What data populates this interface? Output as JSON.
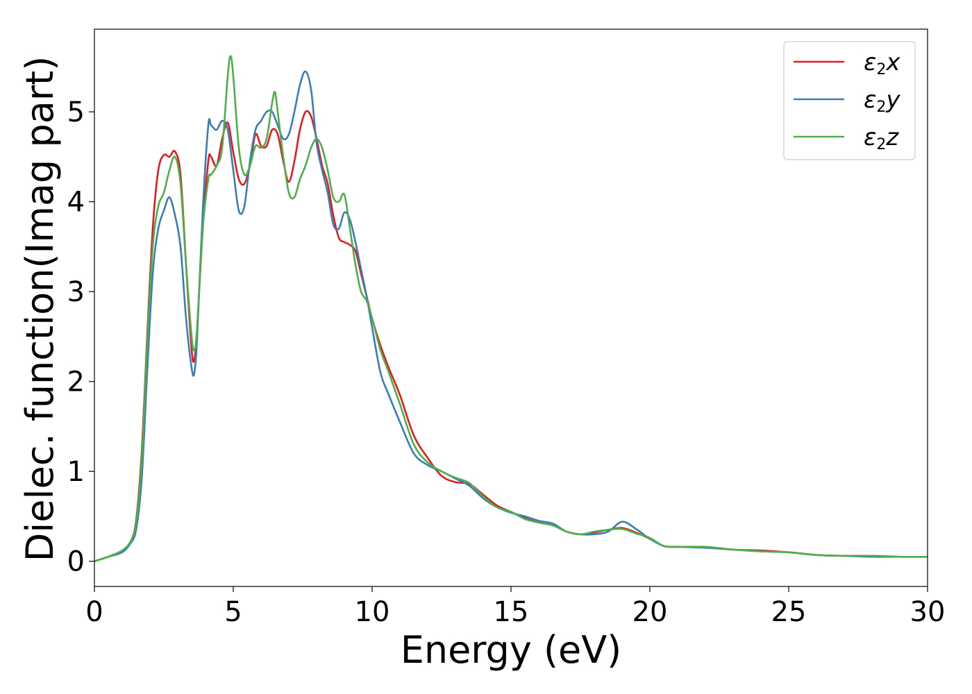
{
  "chart_data": {
    "type": "line",
    "title": "",
    "xlabel": "Energy (eV)",
    "ylabel": "Dielec. function(Imag part)",
    "xlim": [
      0,
      30
    ],
    "ylim": [
      -0.28,
      5.92
    ],
    "xticks": [
      0,
      5,
      10,
      15,
      20,
      25,
      30
    ],
    "xtick_labels": [
      "0",
      "5",
      "10",
      "15",
      "20",
      "25",
      "30"
    ],
    "yticks": [
      0,
      1,
      2,
      3,
      4,
      5
    ],
    "ytick_labels": [
      "0",
      "1",
      "2",
      "3",
      "4",
      "5"
    ],
    "grid": false,
    "legend_position": "top-right",
    "series": [
      {
        "name": "ε2x",
        "legend_main": "ε",
        "legend_sub": "2",
        "legend_tail": "x",
        "color": "#e41a1c",
        "x": [
          0,
          0.5,
          1.0,
          1.3,
          1.5,
          1.7,
          1.9,
          2.1,
          2.3,
          2.5,
          2.7,
          2.9,
          3.1,
          3.3,
          3.5,
          3.6,
          3.7,
          3.9,
          4.1,
          4.2,
          4.4,
          4.6,
          4.8,
          5.0,
          5.2,
          5.4,
          5.6,
          5.8,
          6.0,
          6.2,
          6.4,
          6.6,
          6.8,
          7.0,
          7.2,
          7.4,
          7.6,
          7.8,
          8.0,
          8.2,
          8.4,
          8.6,
          8.8,
          9.0,
          9.2,
          9.4,
          9.6,
          9.8,
          10.0,
          10.3,
          10.6,
          11.0,
          11.5,
          12.0,
          12.5,
          13.0,
          13.5,
          14.0,
          14.5,
          15.0,
          15.5,
          16.0,
          16.5,
          17.0,
          17.5,
          18.0,
          18.5,
          19.0,
          19.5,
          20.0,
          20.5,
          21.0,
          22.0,
          23.0,
          24.0,
          25.0,
          26.0,
          27.0,
          28.0,
          29.0,
          30.0
        ],
        "y": [
          0,
          0.05,
          0.12,
          0.22,
          0.45,
          1.2,
          2.5,
          3.7,
          4.35,
          4.52,
          4.5,
          4.56,
          4.3,
          3.3,
          2.35,
          2.25,
          2.6,
          3.7,
          4.45,
          4.5,
          4.4,
          4.7,
          4.88,
          4.55,
          4.25,
          4.2,
          4.4,
          4.75,
          4.62,
          4.62,
          4.8,
          4.75,
          4.45,
          4.22,
          4.45,
          4.8,
          5.0,
          4.95,
          4.7,
          4.4,
          4.2,
          3.85,
          3.6,
          3.55,
          3.52,
          3.45,
          3.2,
          2.95,
          2.7,
          2.4,
          2.15,
          1.85,
          1.4,
          1.15,
          0.95,
          0.88,
          0.86,
          0.74,
          0.62,
          0.55,
          0.48,
          0.43,
          0.4,
          0.33,
          0.3,
          0.32,
          0.35,
          0.37,
          0.32,
          0.25,
          0.17,
          0.16,
          0.16,
          0.13,
          0.12,
          0.1,
          0.07,
          0.06,
          0.06,
          0.05,
          0.05
        ]
      },
      {
        "name": "ε2y",
        "legend_main": "ε",
        "legend_sub": "2",
        "legend_tail": "y",
        "color": "#377eb8",
        "x": [
          0,
          0.5,
          1.0,
          1.3,
          1.5,
          1.7,
          1.9,
          2.1,
          2.3,
          2.5,
          2.7,
          2.9,
          3.1,
          3.3,
          3.5,
          3.6,
          3.7,
          3.9,
          4.1,
          4.2,
          4.4,
          4.6,
          4.8,
          5.0,
          5.2,
          5.4,
          5.6,
          5.8,
          6.0,
          6.2,
          6.4,
          6.6,
          6.8,
          7.0,
          7.2,
          7.4,
          7.6,
          7.8,
          8.0,
          8.2,
          8.4,
          8.6,
          8.8,
          9.0,
          9.2,
          9.4,
          9.6,
          9.8,
          10.0,
          10.3,
          10.6,
          11.0,
          11.5,
          12.0,
          12.5,
          13.0,
          13.5,
          14.0,
          14.5,
          15.0,
          15.5,
          16.0,
          16.5,
          17.0,
          17.5,
          18.0,
          18.5,
          19.0,
          19.5,
          20.0,
          20.5,
          21.0,
          22.0,
          23.0,
          24.0,
          25.0,
          26.0,
          27.0,
          28.0,
          29.0,
          30.0
        ],
        "y": [
          0,
          0.05,
          0.1,
          0.2,
          0.35,
          0.9,
          2.1,
          3.2,
          3.7,
          3.9,
          4.05,
          3.85,
          3.5,
          2.7,
          2.15,
          2.1,
          2.5,
          3.9,
          4.85,
          4.85,
          4.8,
          4.9,
          4.8,
          4.35,
          3.9,
          3.95,
          4.45,
          4.8,
          4.9,
          5.0,
          5.0,
          4.85,
          4.7,
          4.75,
          5.0,
          5.3,
          5.45,
          5.25,
          4.65,
          4.35,
          4.1,
          3.75,
          3.7,
          3.88,
          3.8,
          3.55,
          3.25,
          2.95,
          2.6,
          2.1,
          1.85,
          1.55,
          1.2,
          1.07,
          1.0,
          0.92,
          0.84,
          0.7,
          0.6,
          0.54,
          0.5,
          0.45,
          0.42,
          0.33,
          0.3,
          0.3,
          0.33,
          0.44,
          0.36,
          0.25,
          0.17,
          0.16,
          0.15,
          0.13,
          0.11,
          0.1,
          0.07,
          0.06,
          0.05,
          0.05,
          0.05
        ]
      },
      {
        "name": "ε2z",
        "legend_main": "ε",
        "legend_sub": "2",
        "legend_tail": "z",
        "color": "#4daf4a",
        "x": [
          0,
          0.5,
          1.0,
          1.3,
          1.5,
          1.7,
          1.9,
          2.1,
          2.3,
          2.5,
          2.7,
          2.9,
          3.1,
          3.3,
          3.5,
          3.6,
          3.7,
          3.9,
          4.1,
          4.2,
          4.4,
          4.6,
          4.8,
          4.9,
          5.0,
          5.2,
          5.4,
          5.6,
          5.8,
          6.0,
          6.2,
          6.4,
          6.5,
          6.6,
          6.8,
          7.0,
          7.2,
          7.4,
          7.6,
          7.8,
          8.0,
          8.2,
          8.4,
          8.6,
          8.8,
          9.0,
          9.2,
          9.4,
          9.6,
          9.8,
          10.0,
          10.3,
          10.6,
          11.0,
          11.5,
          12.0,
          12.5,
          13.0,
          13.5,
          14.0,
          14.5,
          15.0,
          15.5,
          16.0,
          16.5,
          17.0,
          17.5,
          18.0,
          18.5,
          19.0,
          19.5,
          20.0,
          20.5,
          21.0,
          22.0,
          23.0,
          24.0,
          25.0,
          26.0,
          27.0,
          28.0,
          29.0,
          30.0
        ],
        "y": [
          0,
          0.05,
          0.12,
          0.22,
          0.42,
          1.1,
          2.4,
          3.5,
          3.95,
          4.1,
          4.35,
          4.5,
          4.2,
          3.3,
          2.5,
          2.35,
          2.6,
          3.7,
          4.25,
          4.3,
          4.4,
          4.6,
          5.4,
          5.62,
          5.4,
          4.6,
          4.3,
          4.4,
          4.62,
          4.6,
          4.7,
          5.1,
          5.22,
          5.0,
          4.5,
          4.1,
          4.05,
          4.25,
          4.4,
          4.6,
          4.7,
          4.6,
          4.35,
          4.05,
          4.0,
          4.08,
          3.7,
          3.3,
          3.0,
          2.9,
          2.7,
          2.35,
          2.1,
          1.75,
          1.3,
          1.1,
          1.0,
          0.93,
          0.87,
          0.72,
          0.6,
          0.55,
          0.47,
          0.43,
          0.4,
          0.33,
          0.3,
          0.33,
          0.35,
          0.36,
          0.31,
          0.26,
          0.17,
          0.16,
          0.16,
          0.13,
          0.11,
          0.1,
          0.07,
          0.06,
          0.06,
          0.05,
          0.05
        ]
      }
    ]
  }
}
